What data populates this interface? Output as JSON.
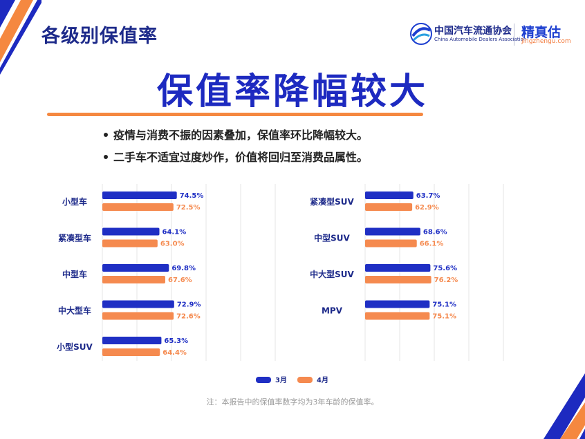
{
  "header": {
    "title": "各级别保值率"
  },
  "logos": {
    "cada_name": "中国汽车流通协会",
    "cada_en": "China Automobile Dealers Association",
    "jzg_name": "精真估",
    "jzg_url": "jingzhengu.com"
  },
  "main": {
    "title": "保值率降幅较大",
    "bullets": [
      "疫情与消费不振的因素叠加，保值率环比降幅较大。",
      "二手车不适宜过度炒作，价值将回归至消费品属性。"
    ],
    "footnote": "注：本报告中的保值率数字均为3年车龄的保值率。"
  },
  "colors": {
    "march": "#1f2fc4",
    "april": "#f58a4f",
    "navy": "#1d2a8a",
    "accent_orange": "#f58840"
  },
  "chart_data": [
    {
      "type": "bar",
      "orientation": "horizontal",
      "categories": [
        "小型车",
        "紧凑型车",
        "中型车",
        "中大型车",
        "小型SUV"
      ],
      "series": [
        {
          "name": "3月",
          "values": [
            74.5,
            64.1,
            69.8,
            72.9,
            65.3
          ],
          "labels": [
            "74.5%",
            "64.1%",
            "69.8%",
            "72.9%",
            "65.3%"
          ]
        },
        {
          "name": "4月",
          "values": [
            72.5,
            63.0,
            67.6,
            72.6,
            64.4
          ],
          "labels": [
            "72.5%",
            "63.0%",
            "67.6%",
            "72.6%",
            "64.4%"
          ]
        }
      ],
      "xlim": [
        0,
        100
      ],
      "grid": true
    },
    {
      "type": "bar",
      "orientation": "horizontal",
      "categories": [
        "紧凑型SUV",
        "中型SUV",
        "中大型SUV",
        "MPV"
      ],
      "series": [
        {
          "name": "3月",
          "values": [
            63.7,
            68.6,
            75.6,
            75.1
          ],
          "labels": [
            "63.7%",
            "68.6%",
            "75.6%",
            "75.1%"
          ]
        },
        {
          "name": "4月",
          "values": [
            62.9,
            66.1,
            76.2,
            75.1
          ],
          "labels": [
            "62.9%",
            "66.1%",
            "76.2%",
            "75.1%"
          ]
        }
      ],
      "xlim": [
        0,
        100
      ],
      "grid": true
    }
  ],
  "legend": {
    "items": [
      "3月",
      "4月"
    ],
    "position": "bottom-center"
  }
}
